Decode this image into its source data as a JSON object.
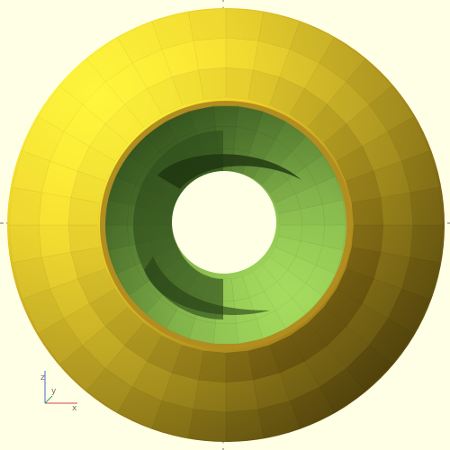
{
  "viewport": {
    "background": "#ffffe5",
    "axis_color": "#6e6e6e"
  },
  "model": {
    "outer_color": "#f2d22a",
    "outer_highlight": "#ffee3a",
    "outer_shadow": "#5e4f0c",
    "rim_color": "#c49e22",
    "inner_color": "#88b84a",
    "inner_light": "#a8e060",
    "inner_dark": "#2c4818",
    "hole_color": "#ffffe5"
  },
  "axes_gizmo": {
    "x_color": "#d24a4a",
    "y_color": "#3c9c5c",
    "z_color": "#4a6ad2"
  }
}
